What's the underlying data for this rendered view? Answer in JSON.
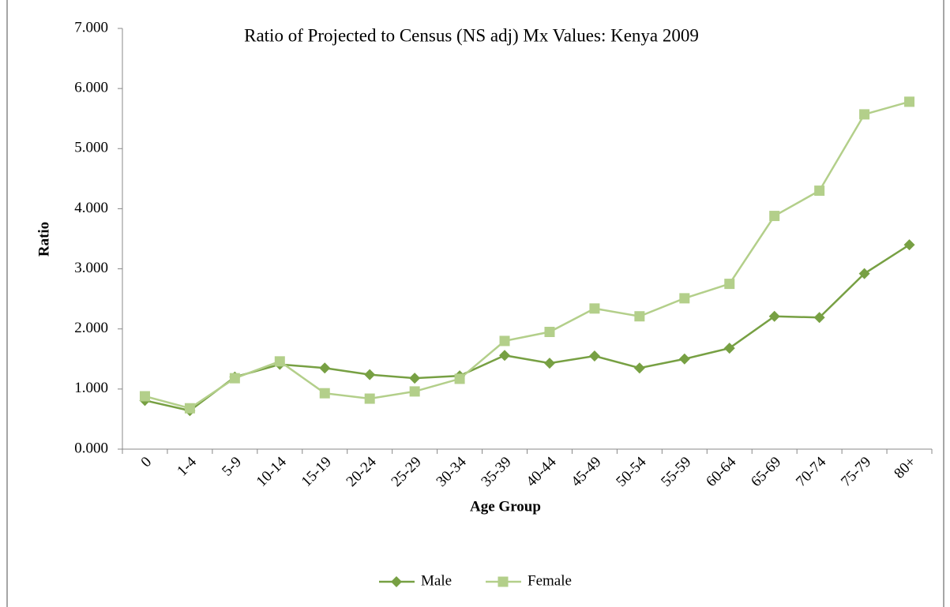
{
  "chart_data": {
    "type": "line",
    "title": "Ratio of Projected to Census (NS adj) Mx Values: Kenya 2009",
    "x_label": "Age Group",
    "y_label": "Ratio",
    "categories": [
      "0",
      "1-4",
      "5-9",
      "10-14",
      "15-19",
      "20-24",
      "25-29",
      "30-34",
      "35-39",
      "40-44",
      "45-49",
      "50-54",
      "55-59",
      "60-64",
      "65-69",
      "70-74",
      "75-79",
      "80+"
    ],
    "series": [
      {
        "name": "Male",
        "color": "#77a043",
        "marker": "diamond",
        "values": [
          0.81,
          0.64,
          1.2,
          1.41,
          1.35,
          1.24,
          1.18,
          1.22,
          1.56,
          1.43,
          1.55,
          1.35,
          1.5,
          1.68,
          2.21,
          2.19,
          2.92,
          3.4
        ]
      },
      {
        "name": "Female",
        "color": "#b3cf8a",
        "marker": "square",
        "values": [
          0.88,
          0.68,
          1.18,
          1.46,
          0.93,
          0.84,
          0.96,
          1.17,
          1.8,
          1.95,
          2.34,
          2.21,
          2.51,
          2.75,
          3.88,
          4.3,
          5.57,
          5.78
        ]
      }
    ],
    "ylim": [
      0,
      7
    ],
    "yticks": [
      {
        "value": 0,
        "label": "0.000"
      },
      {
        "value": 1,
        "label": "1.000"
      },
      {
        "value": 2,
        "label": "2.000"
      },
      {
        "value": 3,
        "label": "3.000"
      },
      {
        "value": 4,
        "label": "4.000"
      },
      {
        "value": 5,
        "label": "5.000"
      },
      {
        "value": 6,
        "label": "6.000"
      },
      {
        "value": 7,
        "label": "7.000"
      }
    ],
    "legend": "bottom"
  }
}
